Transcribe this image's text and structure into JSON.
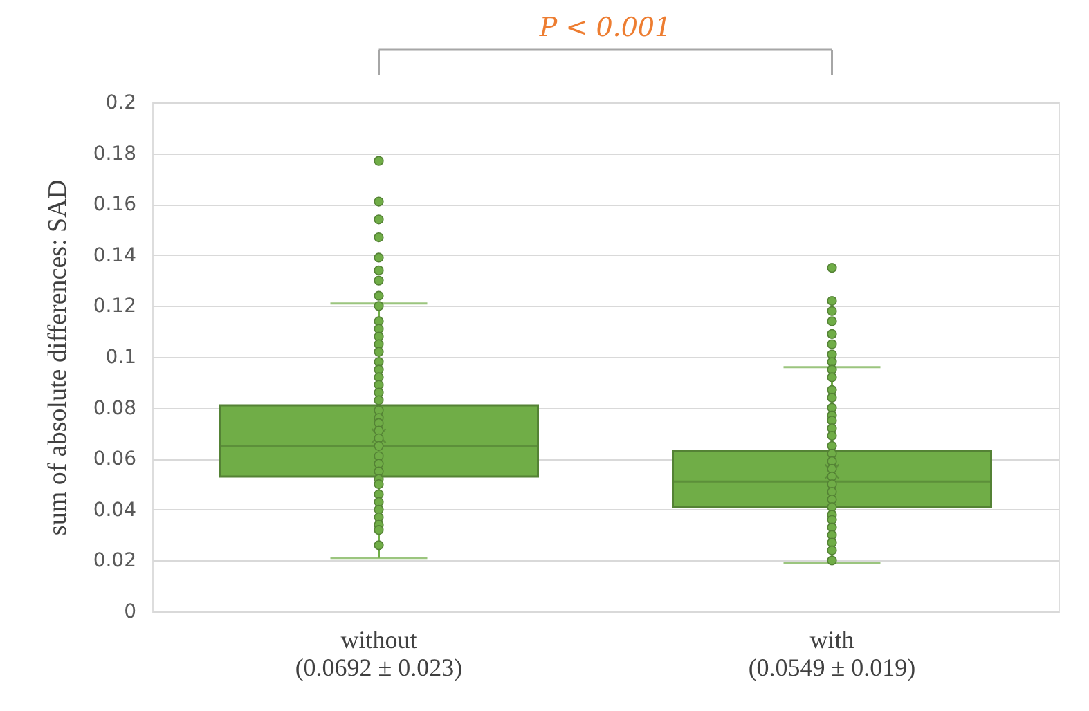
{
  "chart_data": {
    "type": "box",
    "categories": [
      "without\n(0.0692 ± 0.023)",
      "with\n(0.0549 ± 0.019)"
    ],
    "ylabel": "sum of absolute differences: SAD",
    "ylim": [
      0,
      0.2
    ],
    "yticks": [
      0,
      0.02,
      0.04,
      0.06,
      0.08,
      0.1,
      0.12,
      0.14,
      0.16,
      0.18,
      0.2
    ],
    "grid": "y",
    "annotations": [
      "P < 0.001"
    ],
    "series": [
      {
        "type": "box",
        "color": "#70ad47",
        "boxes": [
          {
            "low": 0.021,
            "q1": 0.053,
            "median": 0.065,
            "q3": 0.081,
            "high": 0.121,
            "mean": 0.069,
            "outliers": [
              0.177,
              0.161,
              0.154,
              0.147,
              0.139,
              0.134,
              0.13,
              0.124
            ]
          },
          {
            "low": 0.019,
            "q1": 0.041,
            "median": 0.051,
            "q3": 0.063,
            "high": 0.096,
            "mean": 0.055,
            "outliers": [
              0.135,
              0.122,
              0.118,
              0.114,
              0.109,
              0.105,
              0.101,
              0.098
            ]
          }
        ]
      },
      {
        "type": "scatter",
        "color": "#70ad47",
        "x": [
          "without\n(0.0692 ± 0.023)",
          "without\n(0.0692 ± 0.023)",
          "without\n(0.0692 ± 0.023)",
          "without\n(0.0692 ± 0.023)",
          "without\n(0.0692 ± 0.023)",
          "without\n(0.0692 ± 0.023)",
          "without\n(0.0692 ± 0.023)",
          "without\n(0.0692 ± 0.023)",
          "without\n(0.0692 ± 0.023)",
          "without\n(0.0692 ± 0.023)",
          "without\n(0.0692 ± 0.023)",
          "without\n(0.0692 ± 0.023)",
          "without\n(0.0692 ± 0.023)",
          "without\n(0.0692 ± 0.023)",
          "without\n(0.0692 ± 0.023)",
          "without\n(0.0692 ± 0.023)",
          "without\n(0.0692 ± 0.023)",
          "without\n(0.0692 ± 0.023)",
          "without\n(0.0692 ± 0.023)",
          "without\n(0.0692 ± 0.023)",
          "without\n(0.0692 ± 0.023)",
          "without\n(0.0692 ± 0.023)",
          "without\n(0.0692 ± 0.023)",
          "without\n(0.0692 ± 0.023)",
          "without\n(0.0692 ± 0.023)",
          "without\n(0.0692 ± 0.023)",
          "without\n(0.0692 ± 0.023)",
          "without\n(0.0692 ± 0.023)",
          "without\n(0.0692 ± 0.023)",
          "without\n(0.0692 ± 0.023)",
          "with\n(0.0549 ± 0.019)",
          "with\n(0.0549 ± 0.019)",
          "with\n(0.0549 ± 0.019)",
          "with\n(0.0549 ± 0.019)",
          "with\n(0.0549 ± 0.019)",
          "with\n(0.0549 ± 0.019)",
          "with\n(0.0549 ± 0.019)",
          "with\n(0.0549 ± 0.019)",
          "with\n(0.0549 ± 0.019)",
          "with\n(0.0549 ± 0.019)",
          "with\n(0.0549 ± 0.019)",
          "with\n(0.0549 ± 0.019)",
          "with\n(0.0549 ± 0.019)",
          "with\n(0.0549 ± 0.019)",
          "with\n(0.0549 ± 0.019)",
          "with\n(0.0549 ± 0.019)",
          "with\n(0.0549 ± 0.019)",
          "with\n(0.0549 ± 0.019)",
          "with\n(0.0549 ± 0.019)",
          "with\n(0.0549 ± 0.019)",
          "with\n(0.0549 ± 0.019)",
          "with\n(0.0549 ± 0.019)",
          "with\n(0.0549 ± 0.019)",
          "with\n(0.0549 ± 0.019)",
          "with\n(0.0549 ± 0.019)"
        ],
        "values": [
          0.12,
          0.114,
          0.111,
          0.108,
          0.105,
          0.102,
          0.098,
          0.095,
          0.092,
          0.089,
          0.086,
          0.083,
          0.079,
          0.076,
          0.074,
          0.071,
          0.068,
          0.065,
          0.061,
          0.058,
          0.055,
          0.052,
          0.05,
          0.046,
          0.043,
          0.04,
          0.037,
          0.034,
          0.032,
          0.026,
          0.095,
          0.092,
          0.087,
          0.084,
          0.08,
          0.077,
          0.075,
          0.072,
          0.069,
          0.065,
          0.062,
          0.059,
          0.056,
          0.053,
          0.05,
          0.047,
          0.044,
          0.041,
          0.038,
          0.036,
          0.033,
          0.03,
          0.027,
          0.024,
          0.02
        ]
      }
    ]
  }
}
